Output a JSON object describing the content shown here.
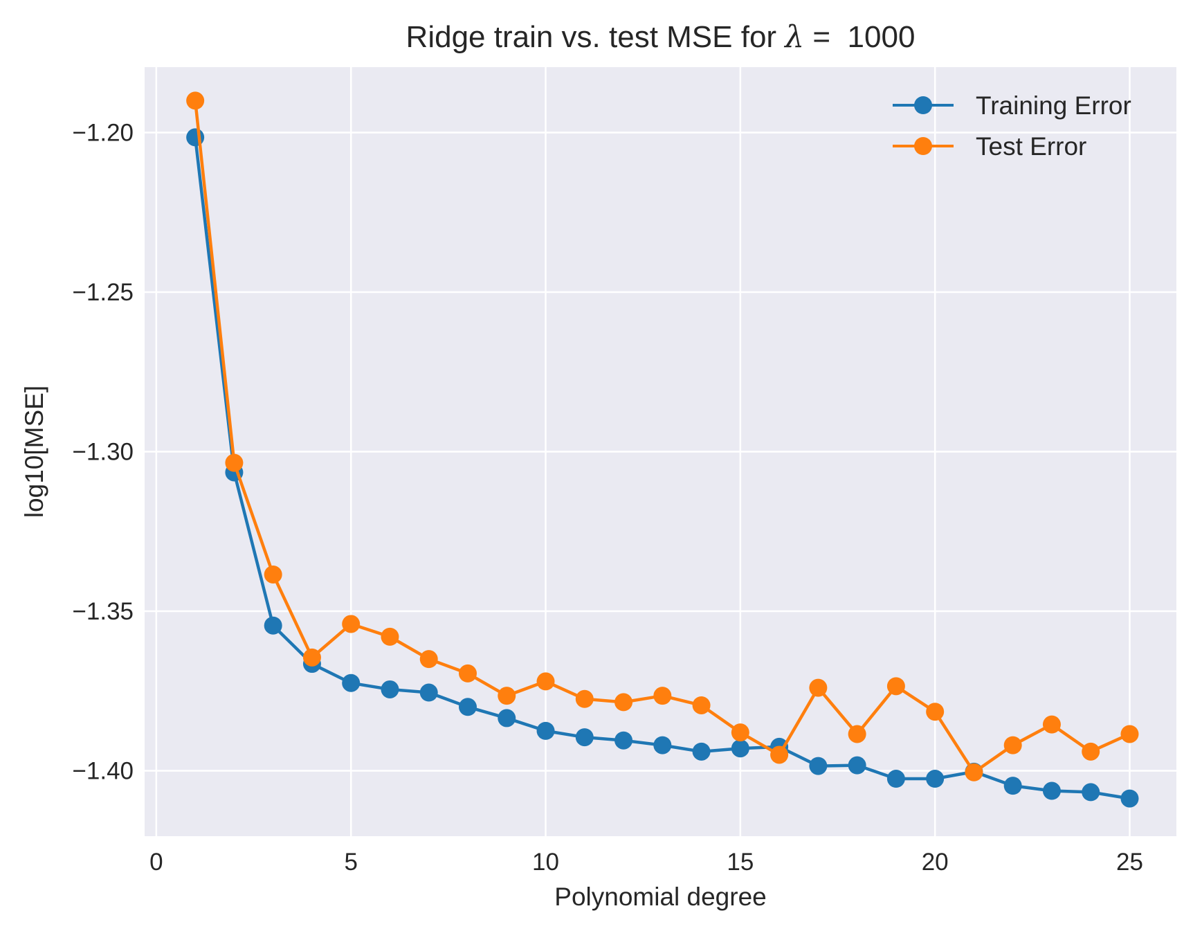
{
  "chart_data": {
    "type": "line",
    "title": "Ridge train vs. test MSE for λ = 1000",
    "title_parts": {
      "prefix": "Ridge train vs. test MSE for ",
      "symbol": "λ",
      "suffix": " =  1000"
    },
    "xlabel": "Polynomial degree",
    "ylabel": "log10[MSE]",
    "xlim": [
      -0.3,
      26.2
    ],
    "ylim": [
      -1.4205,
      -1.1795
    ],
    "xticks": [
      0,
      5,
      10,
      15,
      20,
      25
    ],
    "xtick_labels": [
      "0",
      "5",
      "10",
      "15",
      "20",
      "25"
    ],
    "yticks": [
      -1.2,
      -1.25,
      -1.3,
      -1.35,
      -1.4
    ],
    "ytick_labels": [
      "−1.20",
      "−1.25",
      "−1.30",
      "−1.35",
      "−1.40"
    ],
    "grid": true,
    "legend_position": "top-right",
    "background": "#eaeaf2",
    "x": [
      1,
      2,
      3,
      4,
      5,
      6,
      7,
      8,
      9,
      10,
      11,
      12,
      13,
      14,
      15,
      16,
      17,
      18,
      19,
      20,
      21,
      22,
      23,
      24,
      25
    ],
    "series": [
      {
        "name": "Training Error",
        "color": "#1f77b4",
        "marker": "circle",
        "values": [
          -1.2015,
          -1.3065,
          -1.3545,
          -1.3665,
          -1.3725,
          -1.3745,
          -1.3755,
          -1.38,
          -1.3835,
          -1.3875,
          -1.3895,
          -1.3905,
          -1.392,
          -1.394,
          -1.393,
          -1.3925,
          -1.3985,
          -1.3983,
          -1.4025,
          -1.4025,
          -1.4003,
          -1.4047,
          -1.4063,
          -1.4067,
          -1.4087
        ]
      },
      {
        "name": "Test Error",
        "color": "#ff7f0e",
        "marker": "circle",
        "values": [
          -1.19,
          -1.3035,
          -1.3385,
          -1.3645,
          -1.354,
          -1.358,
          -1.365,
          -1.3695,
          -1.3765,
          -1.372,
          -1.3775,
          -1.3785,
          -1.3765,
          -1.3795,
          -1.388,
          -1.395,
          -1.374,
          -1.3885,
          -1.3735,
          -1.3815,
          -1.4005,
          -1.392,
          -1.3855,
          -1.394,
          -1.3885
        ]
      }
    ]
  }
}
